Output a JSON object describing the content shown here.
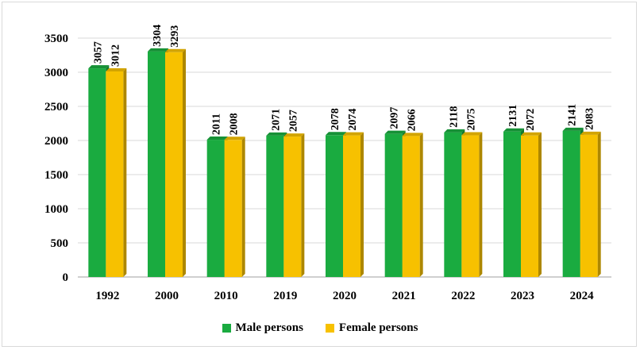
{
  "chart_data": {
    "type": "bar",
    "categories": [
      "1992",
      "2000",
      "2010",
      "2019",
      "2020",
      "2021",
      "2022",
      "2023",
      "2024"
    ],
    "series": [
      {
        "name": "Male persons",
        "color": "#1aab40",
        "values": [
          3057,
          3304,
          2011,
          2071,
          2078,
          2097,
          2118,
          2131,
          2141
        ]
      },
      {
        "name": "Female persons",
        "color": "#f7c100",
        "values": [
          3012,
          3293,
          2008,
          2057,
          2074,
          2066,
          2075,
          2072,
          2083
        ]
      }
    ],
    "yticks": [
      "0",
      "500",
      "1000",
      "1500",
      "2000",
      "2500",
      "3000",
      "3500"
    ],
    "ylim": [
      0,
      3500
    ],
    "grid": true,
    "legend_position": "bottom",
    "title": "",
    "xlabel": "",
    "ylabel": ""
  },
  "legend": {
    "male_label": "Male persons",
    "female_label": "Female persons"
  }
}
